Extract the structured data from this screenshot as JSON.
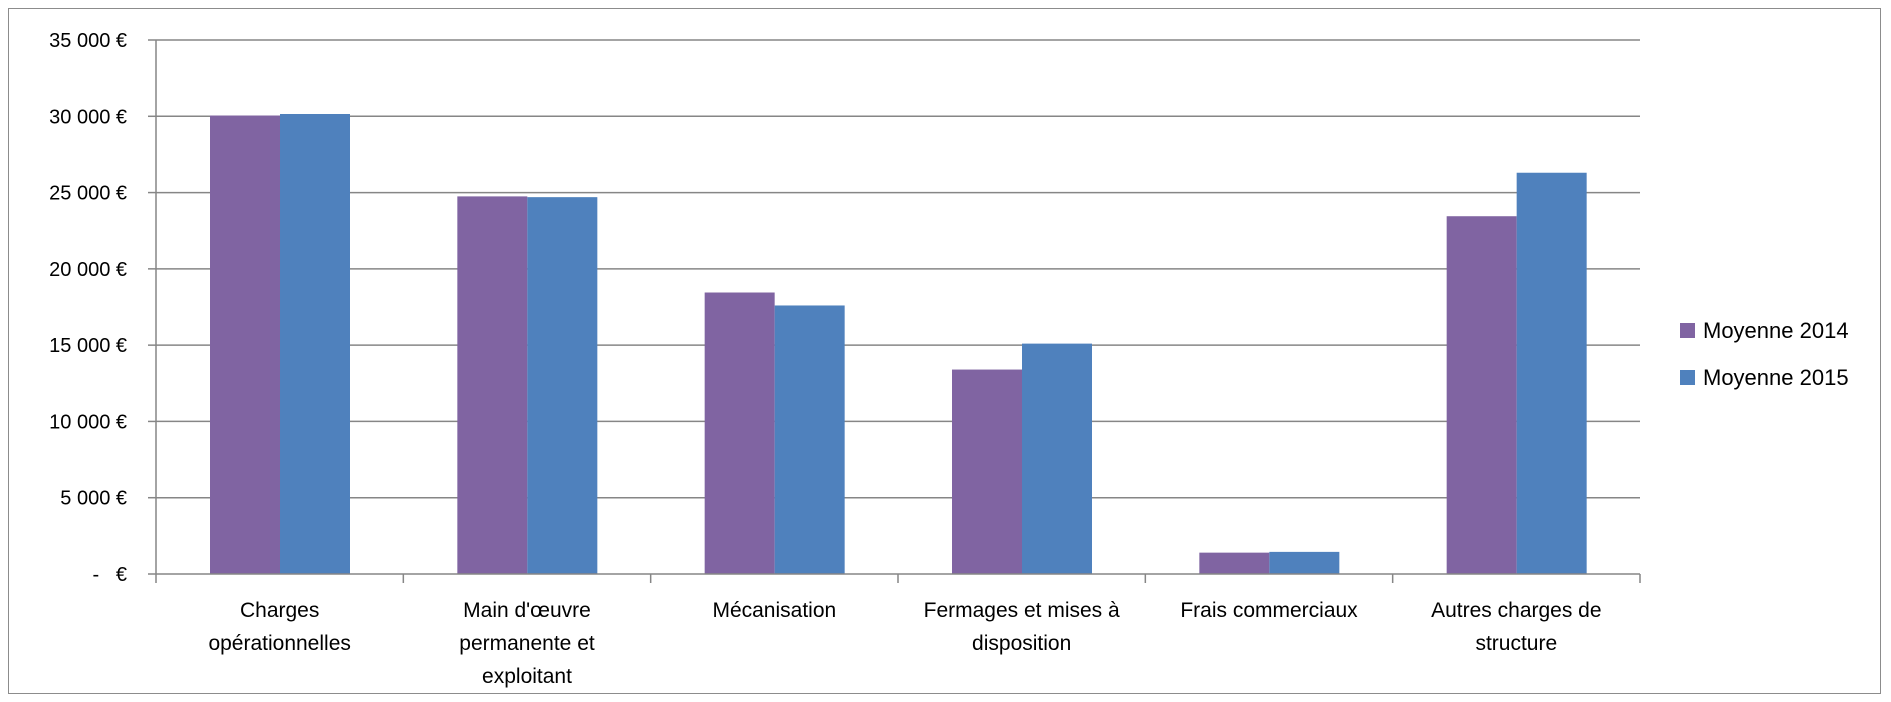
{
  "chart_data": {
    "type": "bar",
    "categories": [
      [
        "Charges",
        "opérationnelles"
      ],
      [
        "Main d'œuvre",
        "permanente et",
        "exploitant"
      ],
      [
        "Mécanisation"
      ],
      [
        "Fermages et mises à",
        "disposition"
      ],
      [
        "Frais commerciaux"
      ],
      [
        "Autres charges de",
        "structure"
      ]
    ],
    "series": [
      {
        "name": "Moyenne 2014",
        "color": "#8064a2",
        "values": [
          30050,
          24750,
          18450,
          13400,
          1400,
          23450
        ]
      },
      {
        "name": "Moyenne 2015",
        "color": "#4f81bd",
        "values": [
          30150,
          24700,
          17600,
          15100,
          1450,
          26300
        ]
      }
    ],
    "ylim": [
      0,
      35000
    ],
    "yticks": [
      {
        "value": 0,
        "label": "-   €"
      },
      {
        "value": 5000,
        "label": "5 000 €"
      },
      {
        "value": 10000,
        "label": "10 000 €"
      },
      {
        "value": 15000,
        "label": "15 000 €"
      },
      {
        "value": 20000,
        "label": "20 000 €"
      },
      {
        "value": 25000,
        "label": "25 000 €"
      },
      {
        "value": 30000,
        "label": "30 000 €"
      },
      {
        "value": 35000,
        "label": "35 000 €"
      }
    ],
    "grid": true,
    "legend_position": "right",
    "title": "",
    "xlabel": "",
    "ylabel": ""
  }
}
